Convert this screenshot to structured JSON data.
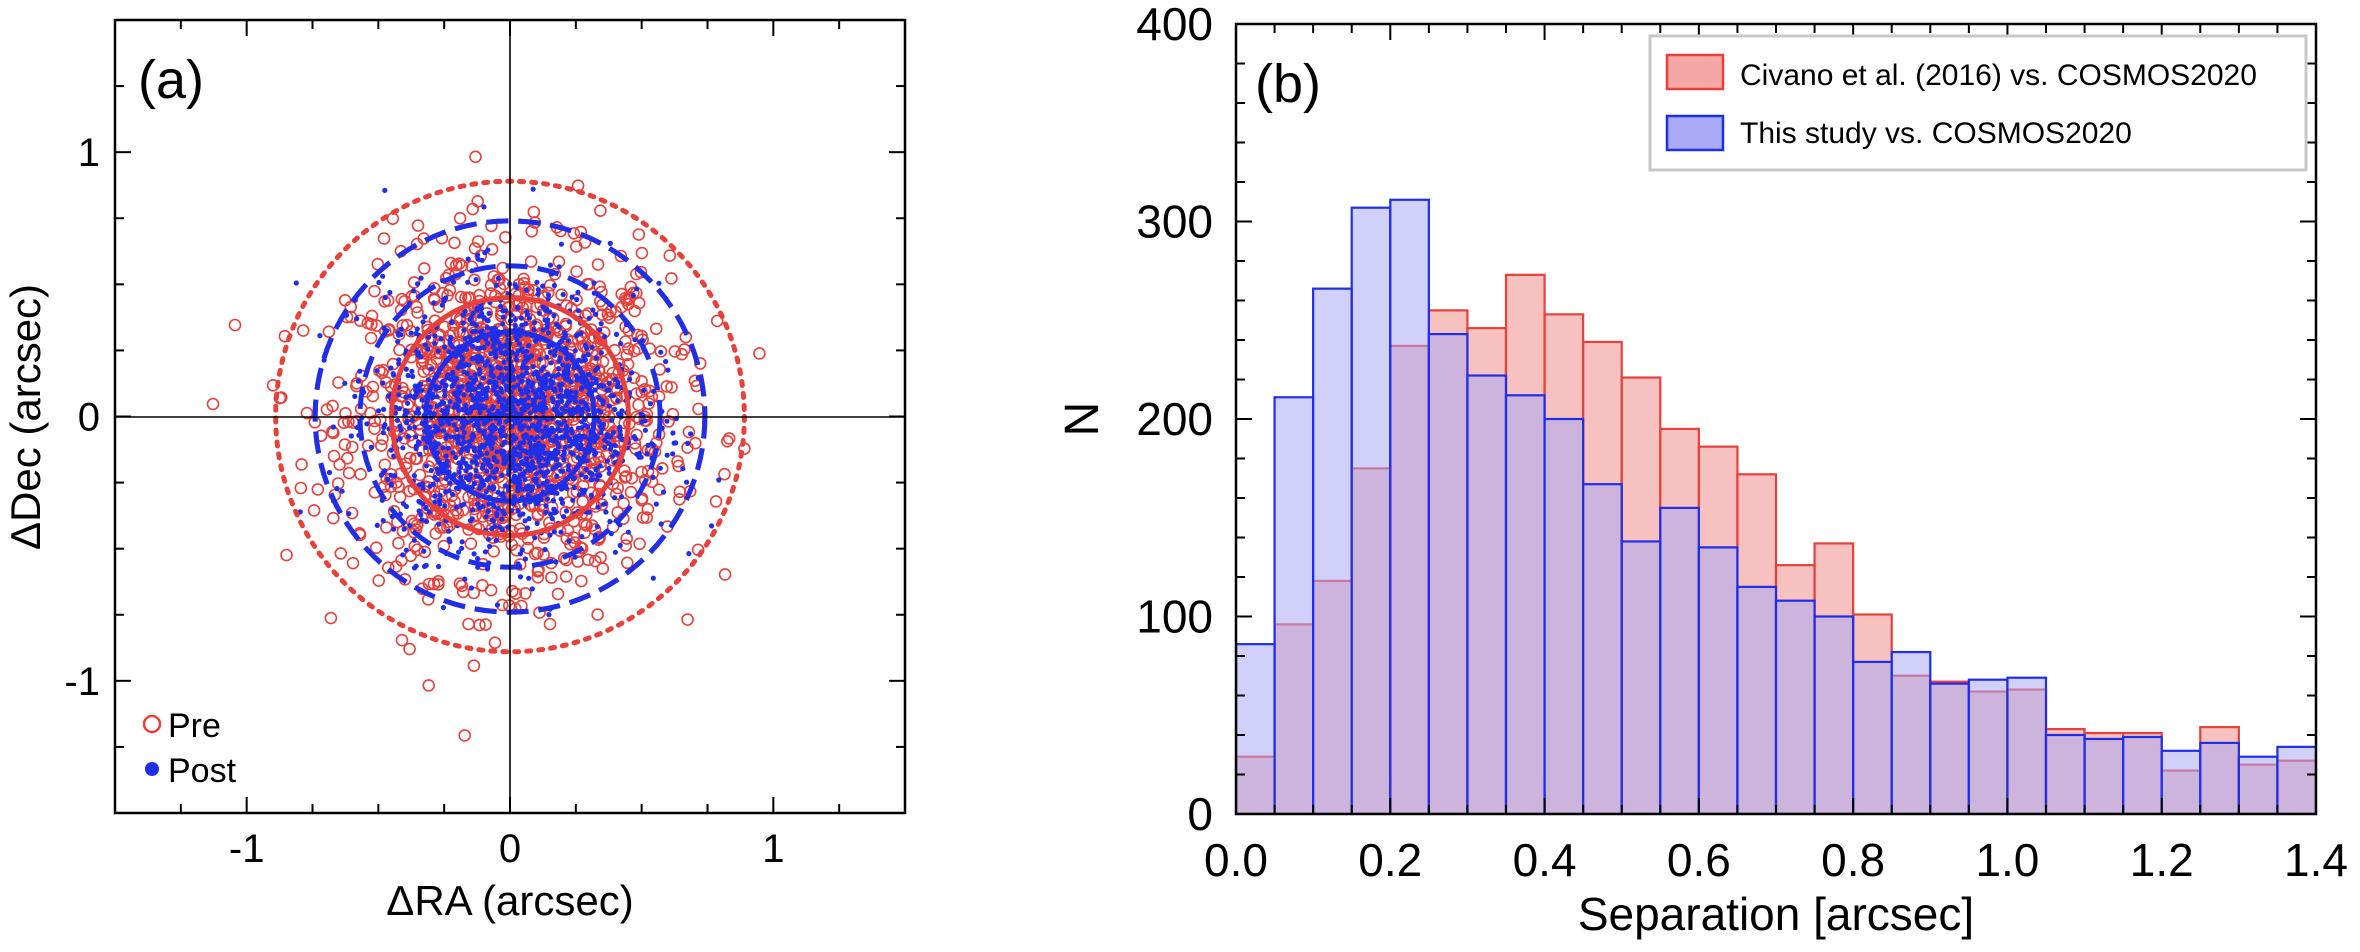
{
  "chart_data": [
    {
      "panel": "a",
      "type": "scatter",
      "panel_label": "(a)",
      "xlabel": "ΔRA (arcsec)",
      "ylabel": "ΔDec (arcsec)",
      "xlim": [
        -1.5,
        1.5
      ],
      "ylim": [
        -1.5,
        1.5
      ],
      "xticks": [
        {
          "v": -1,
          "label": "-1"
        },
        {
          "v": 0,
          "label": "0"
        },
        {
          "v": 1,
          "label": "1"
        }
      ],
      "yticks": [
        {
          "v": -1,
          "label": "-1"
        },
        {
          "v": 0,
          "label": "0"
        },
        {
          "v": 1,
          "label": "1"
        }
      ],
      "series": [
        {
          "name": "Pre",
          "marker": "open-circle",
          "color": "#e8413c",
          "n_points": 1400,
          "sigma": 0.3
        },
        {
          "name": "Post",
          "marker": "filled-dot",
          "color": "#1f2ee8",
          "n_points": 1700,
          "sigma": 0.24
        }
      ],
      "circles": [
        {
          "series": "Pre",
          "style": "solid",
          "radius": 0.45
        },
        {
          "series": "Pre",
          "style": "dashed",
          "radius": 0.74
        },
        {
          "series": "Pre",
          "style": "dotted",
          "radius": 0.89
        },
        {
          "series": "Post",
          "style": "solid",
          "radius": 0.32
        },
        {
          "series": "Post",
          "style": "dashed",
          "radius": 0.57
        },
        {
          "series": "Post",
          "style": "dashed",
          "radius": 0.74
        }
      ],
      "legend": {
        "position": "lower-left",
        "entries": [
          "Pre",
          "Post"
        ]
      }
    },
    {
      "panel": "b",
      "type": "bar",
      "panel_label": "(b)",
      "xlabel": "Separation [arcsec]",
      "ylabel": "N",
      "xlim": [
        0.0,
        1.4
      ],
      "ylim": [
        0,
        400
      ],
      "bin_width": 0.05,
      "bin_starts": [
        0.0,
        0.05,
        0.1,
        0.15,
        0.2,
        0.25,
        0.3,
        0.35,
        0.4,
        0.45,
        0.5,
        0.55,
        0.6,
        0.65,
        0.7,
        0.75,
        0.8,
        0.85,
        0.9,
        0.95,
        1.0,
        1.05,
        1.1,
        1.15,
        1.2,
        1.25,
        1.3,
        1.35
      ],
      "xticks": [
        {
          "v": 0.0,
          "label": "0.0"
        },
        {
          "v": 0.2,
          "label": "0.2"
        },
        {
          "v": 0.4,
          "label": "0.4"
        },
        {
          "v": 0.6,
          "label": "0.6"
        },
        {
          "v": 0.8,
          "label": "0.8"
        },
        {
          "v": 1.0,
          "label": "1.0"
        },
        {
          "v": 1.2,
          "label": "1.2"
        },
        {
          "v": 1.4,
          "label": "1.4"
        }
      ],
      "yticks": [
        {
          "v": 0,
          "label": "0"
        },
        {
          "v": 100,
          "label": "100"
        },
        {
          "v": 200,
          "label": "200"
        },
        {
          "v": 300,
          "label": "300"
        },
        {
          "v": 400,
          "label": "400"
        }
      ],
      "series": [
        {
          "name": "Civano et al. (2016) vs. COSMOS2020",
          "fill": "#f4a7a4",
          "edge": "#e8413c",
          "values": [
            29,
            96,
            118,
            175,
            237,
            255,
            246,
            273,
            253,
            239,
            221,
            195,
            186,
            172,
            126,
            137,
            101,
            70,
            67,
            62,
            63,
            43,
            41,
            41,
            22,
            44,
            25,
            27
          ]
        },
        {
          "name": "This study vs. COSMOS2020",
          "fill": "#a9a9f5",
          "edge": "#1f2ee8",
          "values": [
            86,
            211,
            266,
            307,
            311,
            243,
            222,
            212,
            200,
            167,
            138,
            155,
            135,
            115,
            108,
            100,
            77,
            82,
            66,
            68,
            69,
            40,
            38,
            39,
            32,
            36,
            29,
            34
          ]
        }
      ],
      "legend": {
        "position": "top-right"
      }
    }
  ]
}
